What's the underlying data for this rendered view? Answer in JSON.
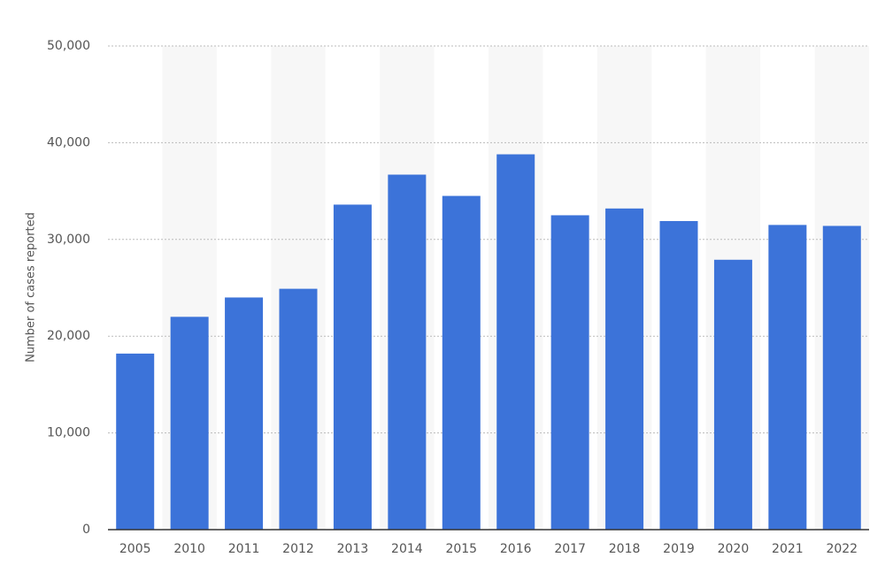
{
  "chart_data": {
    "type": "bar",
    "y_label": "Number of cases reported",
    "categories": [
      "2005",
      "2010",
      "2011",
      "2012",
      "2013",
      "2014",
      "2015",
      "2016",
      "2017",
      "2018",
      "2019",
      "2020",
      "2021",
      "2022"
    ],
    "values": [
      18200,
      22000,
      24000,
      24900,
      33600,
      36700,
      34500,
      38800,
      32500,
      33200,
      31900,
      27900,
      31500,
      31400
    ],
    "color": "#3c73d9",
    "ylim": [
      0,
      50000
    ],
    "yticks": [
      0,
      {
        "value": 10000,
        "label": "10,000"
      },
      {
        "value": 20000,
        "label": "20,000"
      },
      {
        "value": 30000,
        "label": "30,000"
      },
      {
        "value": 40000,
        "label": "40,000"
      },
      {
        "value": 50000,
        "label": "50,000"
      }
    ],
    "grid": true
  }
}
